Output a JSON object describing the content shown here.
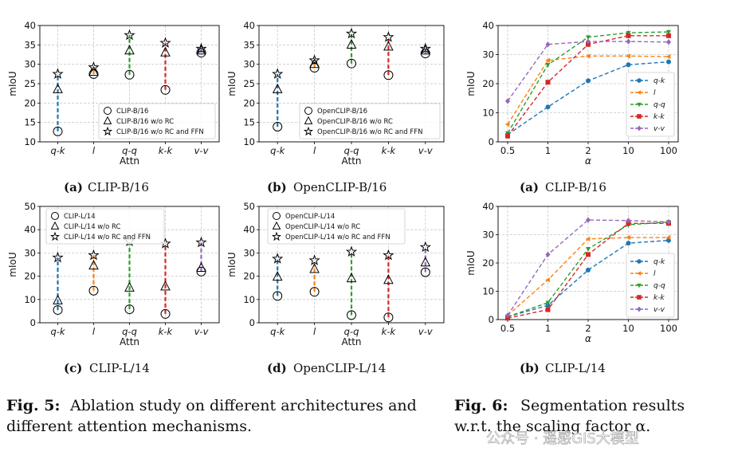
{
  "colors": {
    "q-k": "#1f77b4",
    "l": "#ff7f0e",
    "q-q": "#2ca02c",
    "k-k": "#d62728",
    "v-v": "#9467bd"
  },
  "chart_data": [
    {
      "id": "a",
      "type": "scatter",
      "caption_label": "(a)",
      "caption_text": "CLIP-B/16",
      "categories": [
        "q-k",
        "l",
        "q-q",
        "k-k",
        "v-v"
      ],
      "xlabel": "Attn",
      "ylabel": "mIoU",
      "ylim": [
        10,
        40
      ],
      "yticks": [
        10,
        15,
        20,
        25,
        30,
        35,
        40
      ],
      "legend": [
        "CLIP-B/16",
        "CLIP-B/16 w/o RC",
        "CLIP-B/16 w/o RC and FFN"
      ],
      "series": [
        {
          "name": "CLIP-B/16",
          "values": [
            12.7,
            27.5,
            27.3,
            23.4,
            33.0
          ]
        },
        {
          "name": "CLIP-B/16 w/o RC",
          "values": [
            23.5,
            28.0,
            33.5,
            33.0,
            33.5
          ]
        },
        {
          "name": "CLIP-B/16 w/o RC and FFN",
          "values": [
            27.5,
            29.2,
            37.5,
            35.5,
            34.0
          ]
        }
      ]
    },
    {
      "id": "b",
      "type": "scatter",
      "caption_label": "(b)",
      "caption_text": "OpenCLIP-B/16",
      "categories": [
        "q-k",
        "l",
        "q-q",
        "k-k",
        "v-v"
      ],
      "xlabel": "Attn",
      "ylabel": "mIoU",
      "ylim": [
        10,
        40
      ],
      "yticks": [
        10,
        15,
        20,
        25,
        30,
        35,
        40
      ],
      "legend": [
        "OpenCLIP-B/16",
        "OpenCLIP-B/16 w/o RC",
        "OpenCLIP-B/16 w/o RC and FFN"
      ],
      "series": [
        {
          "name": "OpenCLIP-B/16",
          "values": [
            13.9,
            29.1,
            30.2,
            27.2,
            32.8
          ]
        },
        {
          "name": "OpenCLIP-B/16 w/o RC",
          "values": [
            23.5,
            30.0,
            35.0,
            34.5,
            33.5
          ]
        },
        {
          "name": "OpenCLIP-B/16 w/o RC and FFN",
          "values": [
            27.5,
            31.0,
            37.9,
            37.0,
            34.0
          ]
        }
      ]
    },
    {
      "id": "c",
      "type": "scatter",
      "caption_label": "(c)",
      "caption_text": "CLIP-L/14",
      "categories": [
        "q-k",
        "l",
        "q-q",
        "k-k",
        "v-v"
      ],
      "xlabel": "Attn",
      "ylabel": "mIoU",
      "ylim": [
        0,
        50
      ],
      "yticks": [
        0,
        10,
        20,
        30,
        40,
        50
      ],
      "legend": [
        "CLIP-L/14",
        "CLIP-L/14 w/o RC",
        "CLIP-L/14 w/o RC and FFN"
      ],
      "series": [
        {
          "name": "CLIP-L/14",
          "values": [
            5.5,
            13.8,
            5.8,
            3.8,
            22.0
          ]
        },
        {
          "name": "CLIP-L/14 w/o RC",
          "values": [
            9.5,
            24.5,
            15.0,
            15.5,
            23.5
          ]
        },
        {
          "name": "CLIP-L/14 w/o RC and FFN",
          "values": [
            28.0,
            29.0,
            35.0,
            34.0,
            34.5
          ]
        }
      ]
    },
    {
      "id": "d",
      "type": "scatter",
      "caption_label": "(d)",
      "caption_text": "OpenCLIP-L/14",
      "categories": [
        "q-k",
        "l",
        "q-q",
        "k-k",
        "v-v"
      ],
      "xlabel": "Attn",
      "ylabel": "mIoU",
      "ylim": [
        0,
        50
      ],
      "yticks": [
        0,
        10,
        20,
        30,
        40,
        50
      ],
      "legend": [
        "OpenCLIP-L/14",
        "OpenCLIP-L/14 w/o RC",
        "OpenCLIP-L/14 w/o RC and FFN"
      ],
      "series": [
        {
          "name": "OpenCLIP-L/14",
          "values": [
            11.5,
            13.3,
            3.3,
            2.3,
            21.7
          ]
        },
        {
          "name": "OpenCLIP-L/14 w/o RC",
          "values": [
            19.7,
            23.0,
            19.0,
            18.3,
            25.8
          ]
        },
        {
          "name": "OpenCLIP-L/14 w/o RC and FFN",
          "values": [
            27.5,
            26.8,
            30.5,
            29.0,
            32.5
          ]
        }
      ]
    },
    {
      "id": "e",
      "type": "line",
      "caption_label": "(a)",
      "caption_text": "CLIP-B/16",
      "categories": [
        "0.5",
        "1",
        "2",
        "10",
        "100"
      ],
      "xlabel": "α",
      "ylabel": "mIoU",
      "ylim": [
        0,
        40
      ],
      "yticks": [
        0,
        10,
        20,
        30,
        40
      ],
      "series": [
        {
          "name": "q-k",
          "values": [
            2.5,
            12.0,
            21.0,
            26.5,
            27.5
          ]
        },
        {
          "name": "l",
          "values": [
            6.0,
            28.0,
            29.5,
            29.5,
            29.3
          ]
        },
        {
          "name": "q-q",
          "values": [
            3.0,
            26.5,
            36.0,
            37.5,
            37.8
          ]
        },
        {
          "name": "k-k",
          "values": [
            2.0,
            20.5,
            33.5,
            36.5,
            36.5
          ]
        },
        {
          "name": "v-v",
          "values": [
            14.0,
            33.5,
            34.5,
            34.5,
            34.3
          ]
        }
      ]
    },
    {
      "id": "f",
      "type": "line",
      "caption_label": "(b)",
      "caption_text": "CLIP-L/14",
      "categories": [
        "0.5",
        "1",
        "2",
        "10",
        "100"
      ],
      "xlabel": "α",
      "ylabel": "mIoU",
      "ylim": [
        0,
        40
      ],
      "yticks": [
        0,
        10,
        20,
        30,
        40
      ],
      "series": [
        {
          "name": "q-k",
          "values": [
            1.0,
            5.0,
            17.5,
            27.0,
            28.0
          ]
        },
        {
          "name": "l",
          "values": [
            1.5,
            14.0,
            28.5,
            29.0,
            29.0
          ]
        },
        {
          "name": "q-q",
          "values": [
            1.0,
            6.0,
            25.0,
            33.5,
            34.5
          ]
        },
        {
          "name": "k-k",
          "values": [
            0.5,
            3.5,
            23.0,
            34.0,
            34.0
          ]
        },
        {
          "name": "v-v",
          "values": [
            1.5,
            23.0,
            35.2,
            35.0,
            34.5
          ]
        }
      ]
    }
  ],
  "fig5": {
    "label": "Fig. 5:",
    "line1": "Ablation study on different architectures and",
    "line2": "different attention mechanisms."
  },
  "fig6": {
    "label": "Fig. 6:",
    "line1": "Segmentation results",
    "line2": "w.r.t. the scaling factor α."
  },
  "watermark": "公众号 · 遥感GIS大模型"
}
